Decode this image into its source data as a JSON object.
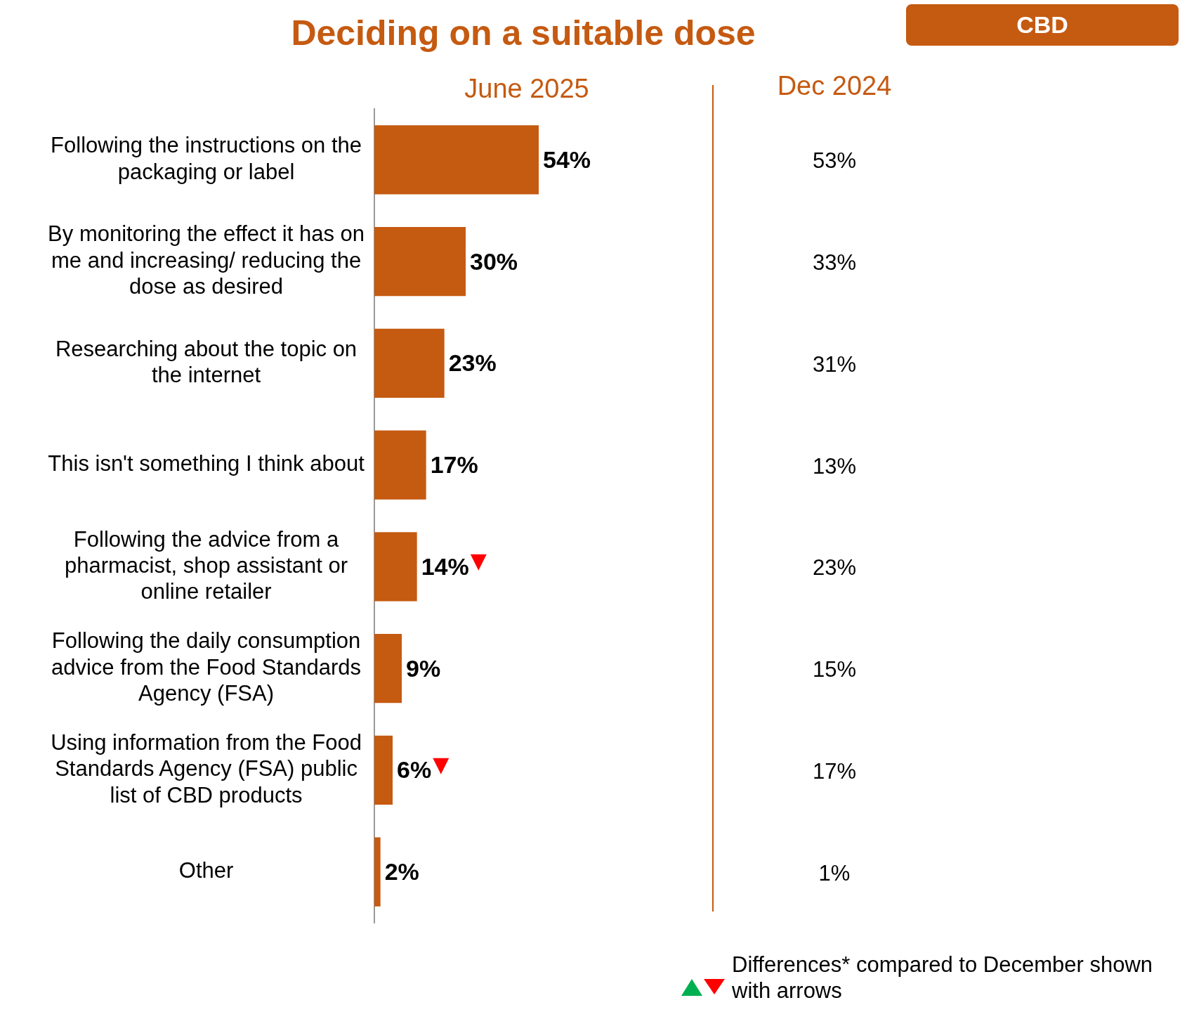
{
  "chart_data": [
    {
      "type": "bar",
      "orientation": "horizontal",
      "title": "Deciding on a suitable dose",
      "categories": [
        "Following the instructions on the packaging or label",
        "By monitoring the effect it has on me and increasing/ reducing the dose as desired",
        "Researching about the topic on the internet",
        "This isn't something I think about",
        "Following the advice from a pharmacist, shop assistant or online retailer",
        "Following the daily consumption advice from the Food Standards Agency (FSA)",
        "Using information from the Food Standards Agency (FSA) public list of CBD products",
        "Other"
      ],
      "series": [
        {
          "name": "June 2025",
          "color": "#c55a11",
          "values": [
            54,
            30,
            23,
            17,
            14,
            9,
            6,
            2
          ],
          "value_labels": [
            "54%",
            "30%",
            "23%",
            "17%",
            "14%",
            "9%",
            "6%",
            "2%"
          ]
        }
      ],
      "tick_labels": "y",
      "data_labels": true,
      "annotations": [
        "CBD",
        "Differences* compared to December shown with arrows",
        {
          "text": "▼",
          "x": 14,
          "y": "Following the advice from a pharmacist, shop assistant or online retailer"
        },
        {
          "text": "▼",
          "x": 6,
          "y": "Using information from the Food Standards Agency (FSA) public list of CBD products"
        }
      ]
    },
    {
      "type": "other",
      "title": "Dec 2024",
      "values": [
        53,
        33,
        31,
        13,
        23,
        15,
        17,
        1
      ],
      "value_labels": [
        "53%",
        "33%",
        "31%",
        "13%",
        "23%",
        "15%",
        "17%",
        "1%"
      ],
      "data_labels": true
    }
  ]
}
